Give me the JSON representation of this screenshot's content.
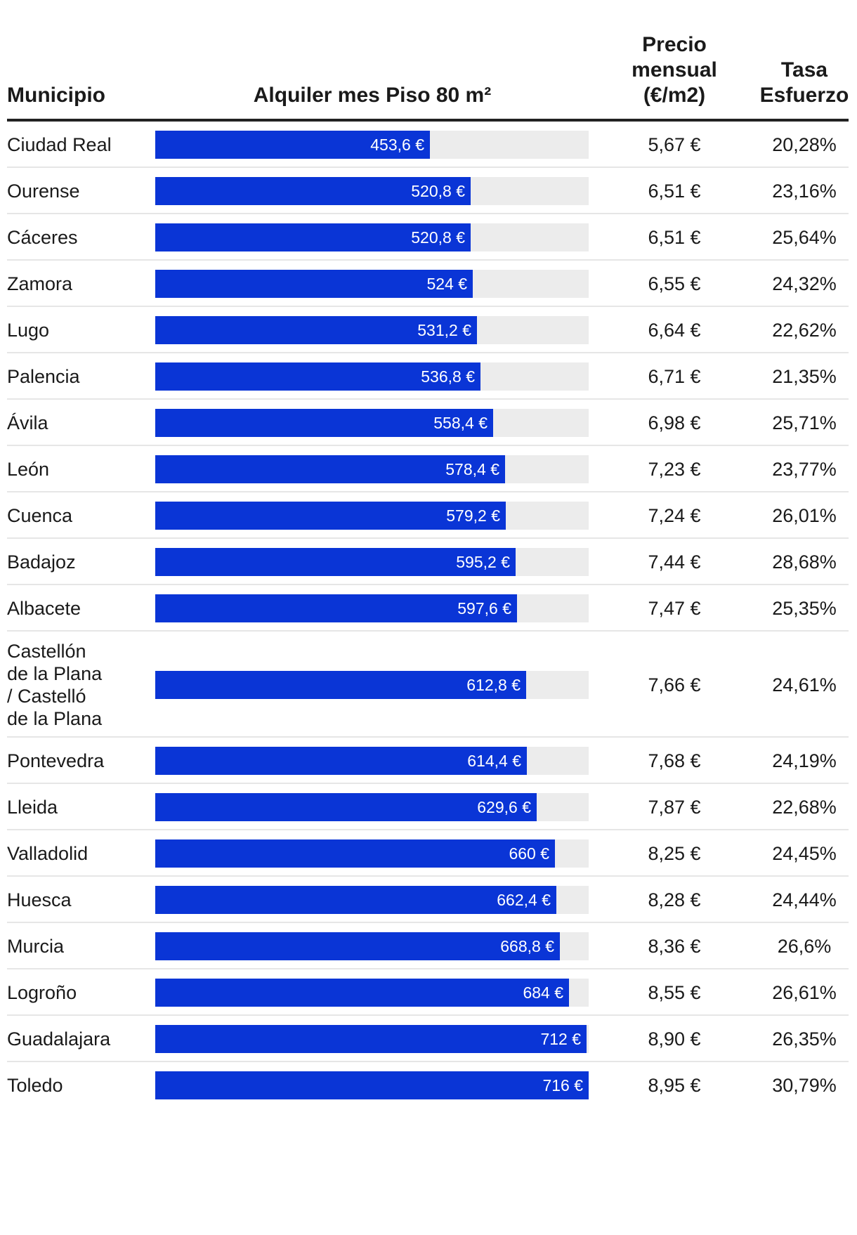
{
  "chart_data": {
    "type": "table",
    "columns": {
      "municipio": "Municipio",
      "alquiler": "Alquiler mes Piso 80 m²",
      "precio": "Precio\nmensual\n(€/m2)",
      "tasa": "Tasa\nEsfuerzo"
    },
    "bar_max": 716,
    "colors": {
      "bar": "#0a35d6",
      "track": "#ececec"
    },
    "rows": [
      {
        "municipio": "Ciudad Real",
        "value": 453.6,
        "label": "453,6 €",
        "precio": "5,67 €",
        "tasa": "20,28%"
      },
      {
        "municipio": "Ourense",
        "value": 520.8,
        "label": "520,8 €",
        "precio": "6,51 €",
        "tasa": "23,16%"
      },
      {
        "municipio": "Cáceres",
        "value": 520.8,
        "label": "520,8 €",
        "precio": "6,51 €",
        "tasa": "25,64%"
      },
      {
        "municipio": "Zamora",
        "value": 524,
        "label": "524 €",
        "precio": "6,55 €",
        "tasa": "24,32%"
      },
      {
        "municipio": "Lugo",
        "value": 531.2,
        "label": "531,2 €",
        "precio": "6,64 €",
        "tasa": "22,62%"
      },
      {
        "municipio": "Palencia",
        "value": 536.8,
        "label": "536,8 €",
        "precio": "6,71 €",
        "tasa": "21,35%"
      },
      {
        "municipio": "Ávila",
        "value": 558.4,
        "label": "558,4 €",
        "precio": "6,98 €",
        "tasa": "25,71%"
      },
      {
        "municipio": "León",
        "value": 578.4,
        "label": "578,4 €",
        "precio": "7,23 €",
        "tasa": "23,77%"
      },
      {
        "municipio": "Cuenca",
        "value": 579.2,
        "label": "579,2 €",
        "precio": "7,24 €",
        "tasa": "26,01%"
      },
      {
        "municipio": "Badajoz",
        "value": 595.2,
        "label": "595,2 €",
        "precio": "7,44 €",
        "tasa": "28,68%"
      },
      {
        "municipio": "Albacete",
        "value": 597.6,
        "label": "597,6 €",
        "precio": "7,47 €",
        "tasa": "25,35%"
      },
      {
        "municipio": "Castellón\nde la Plana\n/ Castelló\nde la Plana",
        "value": 612.8,
        "label": "612,8 €",
        "precio": "7,66 €",
        "tasa": "24,61%"
      },
      {
        "municipio": "Pontevedra",
        "value": 614.4,
        "label": "614,4 €",
        "precio": "7,68 €",
        "tasa": "24,19%"
      },
      {
        "municipio": "Lleida",
        "value": 629.6,
        "label": "629,6 €",
        "precio": "7,87 €",
        "tasa": "22,68%"
      },
      {
        "municipio": "Valladolid",
        "value": 660,
        "label": "660 €",
        "precio": "8,25 €",
        "tasa": "24,45%"
      },
      {
        "municipio": "Huesca",
        "value": 662.4,
        "label": "662,4 €",
        "precio": "8,28 €",
        "tasa": "24,44%"
      },
      {
        "municipio": "Murcia",
        "value": 668.8,
        "label": "668,8 €",
        "precio": "8,36 €",
        "tasa": "26,6%"
      },
      {
        "municipio": "Logroño",
        "value": 684,
        "label": "684 €",
        "precio": "8,55 €",
        "tasa": "26,61%"
      },
      {
        "municipio": "Guadalajara",
        "value": 712,
        "label": "712 €",
        "precio": "8,90 €",
        "tasa": "26,35%"
      },
      {
        "municipio": "Toledo",
        "value": 716,
        "label": "716 €",
        "precio": "8,95 €",
        "tasa": "30,79%"
      }
    ]
  }
}
